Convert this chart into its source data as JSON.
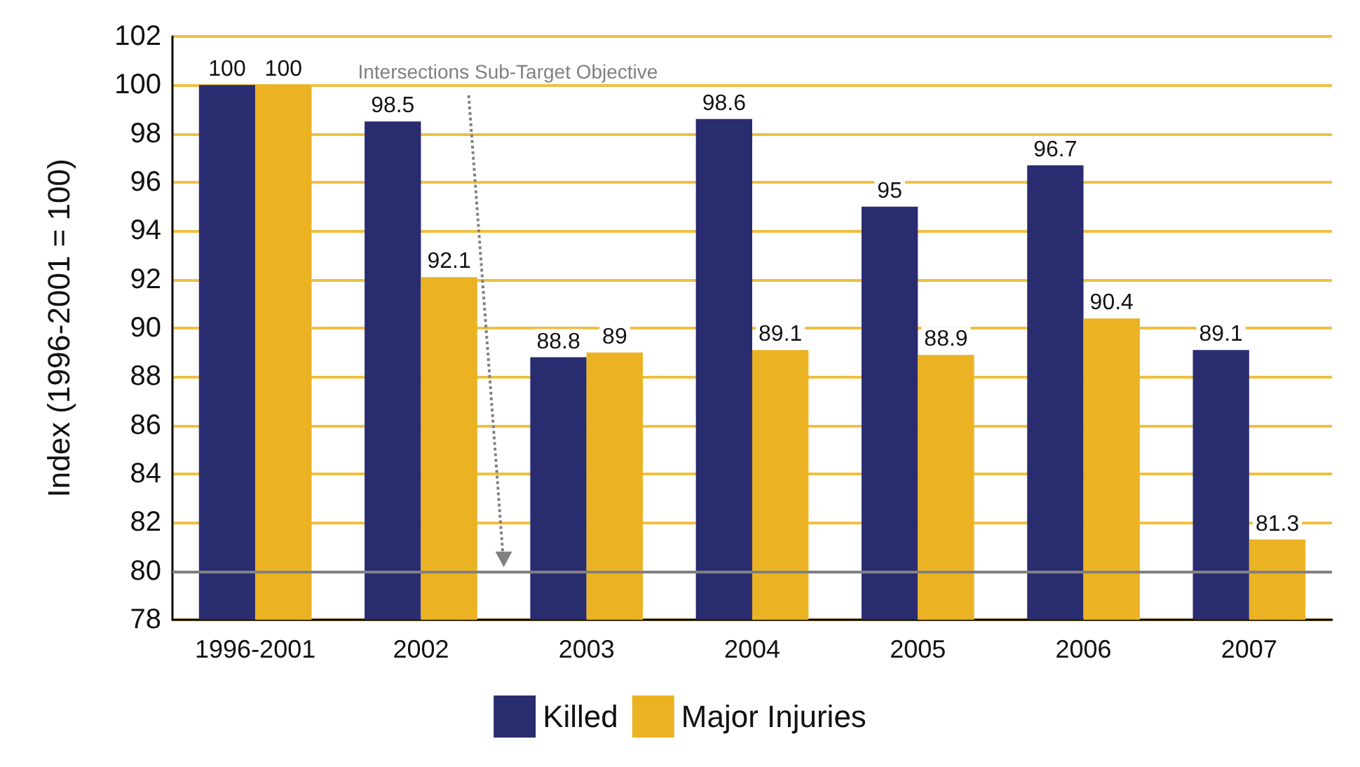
{
  "chart_data": {
    "type": "bar",
    "ylabel": "Index (1996-2001 = 100)",
    "categories": [
      "1996-2001",
      "2002",
      "2003",
      "2004",
      "2005",
      "2006",
      "2007"
    ],
    "series": [
      {
        "name": "Killed",
        "color": "#2a2c70",
        "values": [
          100,
          98.5,
          88.8,
          98.6,
          95,
          96.7,
          89.1
        ]
      },
      {
        "name": "Major Injuries",
        "color": "#ebb223",
        "values": [
          100,
          92.1,
          89,
          89.1,
          88.9,
          90.4,
          81.3
        ]
      }
    ],
    "ylim": [
      78,
      102
    ],
    "yticks": [
      78,
      80,
      82,
      84,
      86,
      88,
      90,
      92,
      94,
      96,
      98,
      100,
      102
    ],
    "grid": "y",
    "data_labels": true,
    "legend": "bottom",
    "ref_lines": [
      {
        "axis": "y",
        "value": 80,
        "label": "Intersections Sub-Target Objective",
        "color": "#808080"
      }
    ]
  }
}
